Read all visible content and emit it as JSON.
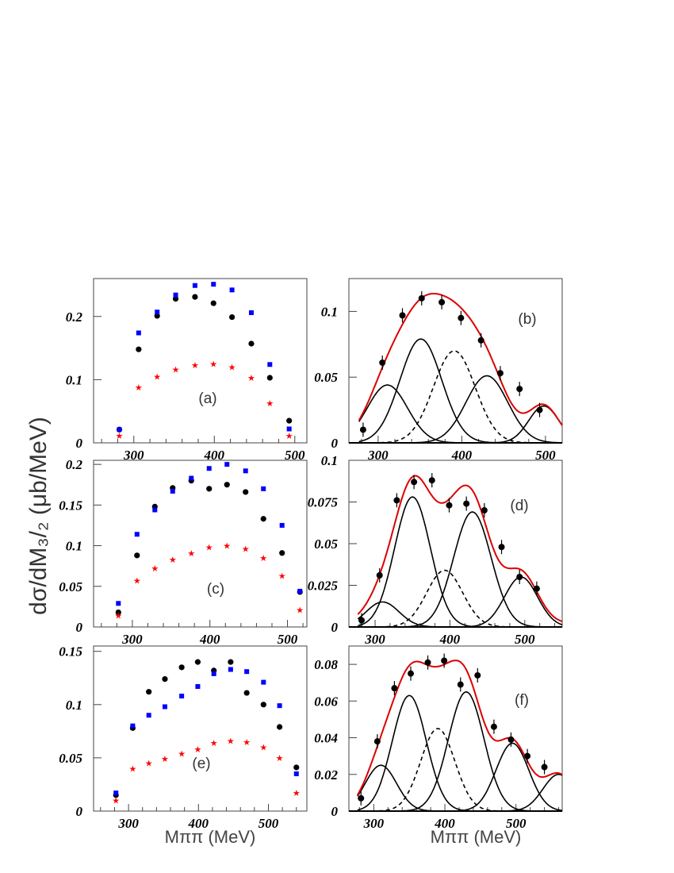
{
  "y_axis_label": "dσ/dM₃/₂  (μb/MeV)",
  "x_axis_label": "Mππ  (MeV)",
  "colors": {
    "black": "#000000",
    "blue": "#0000ff",
    "red": "#ff0000",
    "fit": "#dd0000"
  },
  "chart_data": [
    {
      "type": "scatter",
      "panel_label": "(a)",
      "xlim": [
        250,
        515
      ],
      "ylim": [
        0,
        0.26
      ],
      "xticks": [
        "300",
        "400",
        "500"
      ],
      "yticks": [
        "0",
        "0.1",
        "0.2"
      ],
      "ytick_values": [
        0,
        0.1,
        0.2
      ],
      "series": [
        {
          "marker": "circle",
          "color": "#000000",
          "points": [
            [
              282,
              0.021
            ],
            [
              306,
              0.148
            ],
            [
              329,
              0.201
            ],
            [
              352,
              0.228
            ],
            [
              376,
              0.231
            ],
            [
              399,
              0.221
            ],
            [
              422,
              0.199
            ],
            [
              446,
              0.157
            ],
            [
              469,
              0.103
            ],
            [
              493,
              0.035
            ]
          ]
        },
        {
          "marker": "square",
          "color": "#0000ff",
          "points": [
            [
              282,
              0.021
            ],
            [
              306,
              0.174
            ],
            [
              329,
              0.207
            ],
            [
              352,
              0.234
            ],
            [
              376,
              0.249
            ],
            [
              399,
              0.251
            ],
            [
              422,
              0.242
            ],
            [
              446,
              0.206
            ],
            [
              469,
              0.124
            ],
            [
              493,
              0.022
            ]
          ]
        },
        {
          "marker": "star",
          "color": "#ff0000",
          "points": [
            [
              282,
              0.011
            ],
            [
              306,
              0.088
            ],
            [
              329,
              0.105
            ],
            [
              352,
              0.116
            ],
            [
              376,
              0.123
            ],
            [
              399,
              0.125
            ],
            [
              422,
              0.12
            ],
            [
              446,
              0.103
            ],
            [
              469,
              0.063
            ],
            [
              493,
              0.011
            ]
          ]
        }
      ]
    },
    {
      "type": "line",
      "panel_label": "(b)",
      "xlim": [
        265,
        520
      ],
      "ylim": [
        0,
        0.125
      ],
      "xticks": [
        "300",
        "400",
        "500"
      ],
      "yticks": [
        "0",
        "0.05",
        "0.1"
      ],
      "ytick_values": [
        0,
        0.05,
        0.1
      ],
      "data": {
        "x": [
          282,
          305,
          329,
          352,
          376,
          399,
          423,
          446,
          469,
          493
        ],
        "y": [
          0.01,
          0.061,
          0.097,
          0.11,
          0.107,
          0.095,
          0.078,
          0.053,
          0.041,
          0.025
        ]
      },
      "components": [
        {
          "style": "solid",
          "A": 0.044,
          "mu": 311,
          "sigma": 24
        },
        {
          "style": "solid",
          "A": 0.079,
          "mu": 351,
          "sigma": 25
        },
        {
          "style": "dashed",
          "A": 0.07,
          "mu": 391,
          "sigma": 25
        },
        {
          "style": "solid",
          "A": 0.051,
          "mu": 430,
          "sigma": 25
        },
        {
          "style": "solid",
          "A": 0.028,
          "mu": 498,
          "sigma": 18
        }
      ],
      "fit_offset": 0
    },
    {
      "type": "scatter",
      "panel_label": "(c)",
      "xlim": [
        250,
        525
      ],
      "ylim": [
        0,
        0.205
      ],
      "xticks": [
        "300",
        "400",
        "500"
      ],
      "yticks": [
        "0",
        "0.05",
        "0.1",
        "0.15",
        "0.2"
      ],
      "ytick_values": [
        0,
        0.05,
        0.1,
        0.15,
        0.2
      ],
      "series": [
        {
          "marker": "circle",
          "color": "#000000",
          "points": [
            [
              282,
              0.018
            ],
            [
              306,
              0.088
            ],
            [
              329,
              0.148
            ],
            [
              352,
              0.171
            ],
            [
              376,
              0.18
            ],
            [
              399,
              0.17
            ],
            [
              422,
              0.175
            ],
            [
              446,
              0.166
            ],
            [
              469,
              0.133
            ],
            [
              493,
              0.091
            ],
            [
              516,
              0.043
            ]
          ]
        },
        {
          "marker": "square",
          "color": "#0000ff",
          "points": [
            [
              282,
              0.029
            ],
            [
              306,
              0.114
            ],
            [
              329,
              0.144
            ],
            [
              352,
              0.167
            ],
            [
              376,
              0.183
            ],
            [
              399,
              0.195
            ],
            [
              422,
              0.2
            ],
            [
              446,
              0.192
            ],
            [
              469,
              0.17
            ],
            [
              493,
              0.125
            ],
            [
              516,
              0.044
            ]
          ]
        },
        {
          "marker": "star",
          "color": "#ff0000",
          "points": [
            [
              282,
              0.014
            ],
            [
              306,
              0.057
            ],
            [
              329,
              0.072
            ],
            [
              352,
              0.083
            ],
            [
              376,
              0.091
            ],
            [
              399,
              0.098
            ],
            [
              422,
              0.1
            ],
            [
              446,
              0.096
            ],
            [
              469,
              0.085
            ],
            [
              493,
              0.063
            ],
            [
              516,
              0.021
            ]
          ]
        }
      ]
    },
    {
      "type": "line",
      "panel_label": "(d)",
      "xlim": [
        265,
        550
      ],
      "ylim": [
        0,
        0.1
      ],
      "xticks": [
        "300",
        "400",
        "500"
      ],
      "yticks": [
        "0",
        "0.025",
        "0.05",
        "0.075",
        "0.1"
      ],
      "ytick_values": [
        0,
        0.025,
        0.05,
        0.075,
        0.1
      ],
      "data": {
        "x": [
          282,
          306,
          329,
          352,
          376,
          399,
          422,
          446,
          469,
          493,
          516
        ],
        "y": [
          0.004,
          0.031,
          0.076,
          0.087,
          0.088,
          0.073,
          0.074,
          0.07,
          0.048,
          0.03,
          0.023
        ]
      },
      "components": [
        {
          "style": "solid",
          "A": 0.015,
          "mu": 310,
          "sigma": 22
        },
        {
          "style": "solid",
          "A": 0.078,
          "mu": 350,
          "sigma": 24
        },
        {
          "style": "dashed",
          "A": 0.034,
          "mu": 393,
          "sigma": 24
        },
        {
          "style": "solid",
          "A": 0.069,
          "mu": 430,
          "sigma": 25
        },
        {
          "style": "solid",
          "A": 0.03,
          "mu": 495,
          "sigma": 22
        }
      ],
      "fit_offset": 0.002
    },
    {
      "type": "scatter",
      "panel_label": "(e)",
      "xlim": [
        250,
        555
      ],
      "ylim": [
        0,
        0.155
      ],
      "xticks": [
        "300",
        "400",
        "500"
      ],
      "yticks": [
        "0",
        "0.05",
        "0.1",
        "0.15"
      ],
      "ytick_values": [
        0,
        0.05,
        0.1,
        0.15
      ],
      "series": [
        {
          "marker": "circle",
          "color": "#000000",
          "points": [
            [
              282,
              0.015
            ],
            [
              306,
              0.078
            ],
            [
              329,
              0.112
            ],
            [
              352,
              0.124
            ],
            [
              376,
              0.135
            ],
            [
              399,
              0.14
            ],
            [
              422,
              0.132
            ],
            [
              446,
              0.14
            ],
            [
              469,
              0.111
            ],
            [
              493,
              0.1
            ],
            [
              516,
              0.079
            ],
            [
              540,
              0.041
            ]
          ]
        },
        {
          "marker": "square",
          "color": "#0000ff",
          "points": [
            [
              282,
              0.017
            ],
            [
              306,
              0.08
            ],
            [
              329,
              0.09
            ],
            [
              352,
              0.098
            ],
            [
              376,
              0.108
            ],
            [
              399,
              0.117
            ],
            [
              422,
              0.129
            ],
            [
              446,
              0.133
            ],
            [
              469,
              0.131
            ],
            [
              493,
              0.121
            ],
            [
              516,
              0.099
            ],
            [
              540,
              0.035
            ]
          ]
        },
        {
          "marker": "star",
          "color": "#ff0000",
          "points": [
            [
              282,
              0.01
            ],
            [
              306,
              0.04
            ],
            [
              329,
              0.045
            ],
            [
              352,
              0.049
            ],
            [
              376,
              0.054
            ],
            [
              399,
              0.058
            ],
            [
              422,
              0.064
            ],
            [
              446,
              0.066
            ],
            [
              469,
              0.065
            ],
            [
              493,
              0.06
            ],
            [
              516,
              0.05
            ],
            [
              540,
              0.017
            ]
          ]
        }
      ]
    },
    {
      "type": "line",
      "panel_label": "(f)",
      "xlim": [
        265,
        565
      ],
      "ylim": [
        0,
        0.09
      ],
      "xticks": [
        "300",
        "400",
        "500"
      ],
      "yticks": [
        "0",
        "0.02",
        "0.04",
        "0.06",
        "0.08"
      ],
      "ytick_values": [
        0,
        0.02,
        0.04,
        0.06,
        0.08
      ],
      "data": {
        "x": [
          282,
          305,
          329,
          352,
          376,
          399,
          422,
          446,
          469,
          493,
          516,
          540
        ],
        "y": [
          0.007,
          0.038,
          0.067,
          0.075,
          0.081,
          0.082,
          0.069,
          0.074,
          0.046,
          0.039,
          0.03,
          0.024
        ]
      },
      "components": [
        {
          "style": "solid",
          "A": 0.025,
          "mu": 310,
          "sigma": 22
        },
        {
          "style": "solid",
          "A": 0.063,
          "mu": 350,
          "sigma": 24
        },
        {
          "style": "dashed",
          "A": 0.045,
          "mu": 390,
          "sigma": 24
        },
        {
          "style": "solid",
          "A": 0.065,
          "mu": 430,
          "sigma": 25
        },
        {
          "style": "solid",
          "A": 0.037,
          "mu": 495,
          "sigma": 23
        },
        {
          "style": "solid",
          "A": 0.02,
          "mu": 560,
          "sigma": 22
        }
      ],
      "fit_offset": 0
    }
  ]
}
